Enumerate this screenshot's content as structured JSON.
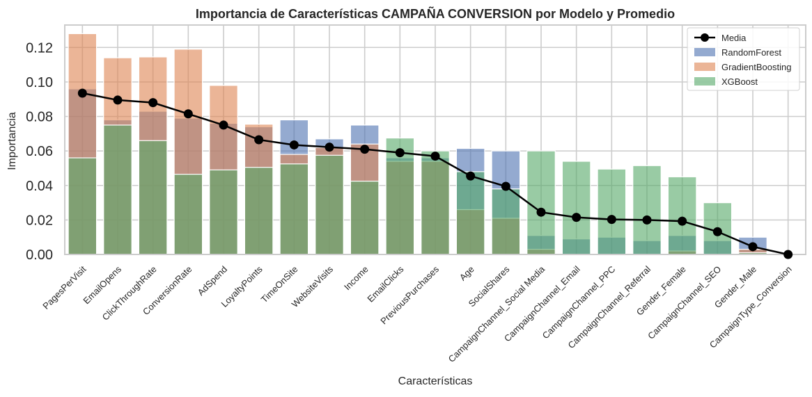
{
  "chart_data": {
    "type": "bar",
    "title": "Importancia de Características CAMPAÑA CONVERSION por Modelo y Promedio",
    "xlabel": "Características",
    "ylabel": "Importancia",
    "ylim": [
      0,
      0.133
    ],
    "yticks": [
      0.0,
      0.02,
      0.04,
      0.06,
      0.08,
      0.1,
      0.12
    ],
    "ytick_labels": [
      "0.00",
      "0.02",
      "0.04",
      "0.06",
      "0.08",
      "0.10",
      "0.12"
    ],
    "grid": true,
    "legend_position": "top-right",
    "categories": [
      "PagesPerVisit",
      "EmailOpens",
      "ClickThroughRate",
      "ConversionRate",
      "AdSpend",
      "LoyaltyPoints",
      "TimeOnSite",
      "WebsiteVisits",
      "Income",
      "EmailClicks",
      "PreviousPurchases",
      "Age",
      "SocialShares",
      "CampaignChannel_Social Media",
      "CampaignChannel_Email",
      "CampaignChannel_PPC",
      "CampaignChannel_Referral",
      "Gender_Female",
      "CampaignChannel_SEO",
      "Gender_Male",
      "CampaignType_Conversion"
    ],
    "series": [
      {
        "name": "RandomForest",
        "type": "bar",
        "color": "#4c72b0",
        "values": [
          0.096,
          0.078,
          0.083,
          0.079,
          0.076,
          0.074,
          0.078,
          0.067,
          0.075,
          0.056,
          0.056,
          0.0615,
          0.06,
          0.011,
          0.009,
          0.01,
          0.008,
          0.011,
          0.008,
          0.01,
          0.0
        ]
      },
      {
        "name": "GradientBoosting",
        "type": "bar",
        "color": "#dd8452",
        "values": [
          0.128,
          0.114,
          0.1145,
          0.119,
          0.098,
          0.0755,
          0.058,
          0.062,
          0.064,
          0.054,
          0.054,
          0.026,
          0.021,
          0.003,
          0.0,
          0.0,
          0.0,
          0.002,
          0.0,
          0.003,
          0.0
        ]
      },
      {
        "name": "XGBoost",
        "type": "bar",
        "color": "#55a868",
        "values": [
          0.056,
          0.075,
          0.066,
          0.0465,
          0.049,
          0.0505,
          0.0525,
          0.0575,
          0.0425,
          0.0675,
          0.06,
          0.048,
          0.038,
          0.06,
          0.054,
          0.0495,
          0.0515,
          0.045,
          0.03,
          0.001,
          0.0
        ]
      },
      {
        "name": "Media",
        "type": "line",
        "color": "#000000",
        "values": [
          0.0935,
          0.0895,
          0.088,
          0.0815,
          0.075,
          0.0665,
          0.0635,
          0.0622,
          0.061,
          0.059,
          0.057,
          0.0455,
          0.0395,
          0.0245,
          0.0215,
          0.0203,
          0.02,
          0.0193,
          0.0132,
          0.0045,
          0.0
        ]
      }
    ]
  }
}
